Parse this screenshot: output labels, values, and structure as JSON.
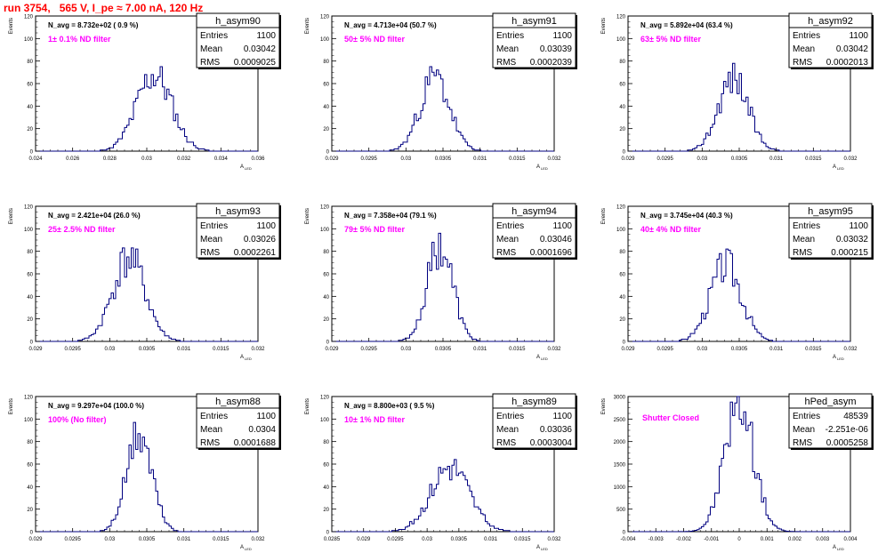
{
  "run_title": "run 3754,   565 V, I_pe ≈ 7.00 nA, 120 Hz",
  "stat_labels": {
    "entries": "Entries",
    "mean": "Mean",
    "rms": "RMS"
  },
  "chart_data": [
    {
      "type": "histogram",
      "name": "h_asym90",
      "entries": "1100",
      "mean": "0.03042",
      "rms": "0.0009025",
      "annotation": "N_avg = 8.732e+02 ( 0.9 %)",
      "filter_label": "1± 0.1% ND filter",
      "ylabel": "Events",
      "xlabel": "A",
      "xlim": [
        0.024,
        0.036
      ],
      "ylim": [
        0,
        120
      ],
      "x_ticks": [
        0.024,
        0.026,
        0.028,
        0.03,
        0.032,
        0.034,
        0.036
      ],
      "x_tick_labels": [
        "0.024",
        "0.026",
        "0.028",
        "0.03",
        "0.032",
        "0.034",
        "0.036"
      ],
      "y_ticks": [
        0,
        20,
        40,
        60,
        80,
        100,
        120
      ],
      "mu": 0.0304,
      "sigma": 0.00095,
      "peak": 68,
      "seed": 11
    },
    {
      "type": "histogram",
      "name": "h_asym91",
      "entries": "1100",
      "mean": "0.03039",
      "rms": "0.0002039",
      "annotation": "N_avg = 4.713e+04 (50.7 %)",
      "filter_label": "50± 5% ND filter",
      "ylabel": "Events",
      "xlabel": "A",
      "xlim": [
        0.029,
        0.032
      ],
      "ylim": [
        0,
        120
      ],
      "x_ticks": [
        0.029,
        0.0295,
        0.03,
        0.0305,
        0.031,
        0.0315,
        0.032
      ],
      "x_tick_labels": [
        "0.029",
        "0.0295",
        "0.03",
        "0.0305",
        "0.031",
        "0.0315",
        "0.032"
      ],
      "y_ticks": [
        0,
        20,
        40,
        60,
        80,
        100,
        120
      ],
      "mu": 0.03039,
      "sigma": 0.0002,
      "peak": 65,
      "seed": 23
    },
    {
      "type": "histogram",
      "name": "h_asym92",
      "entries": "1100",
      "mean": "0.03042",
      "rms": "0.0002013",
      "annotation": "N_avg = 5.892e+04 (63.4 %)",
      "filter_label": "63± 5% ND filter",
      "ylabel": "Events",
      "xlabel": "A",
      "xlim": [
        0.029,
        0.032
      ],
      "ylim": [
        0,
        120
      ],
      "x_ticks": [
        0.029,
        0.0295,
        0.03,
        0.0305,
        0.031,
        0.0315,
        0.032
      ],
      "x_tick_labels": [
        "0.029",
        "0.0295",
        "0.03",
        "0.0305",
        "0.031",
        "0.0315",
        "0.032"
      ],
      "y_ticks": [
        0,
        20,
        40,
        60,
        80,
        100,
        120
      ],
      "mu": 0.03042,
      "sigma": 0.0002,
      "peak": 66,
      "seed": 37
    },
    {
      "type": "histogram",
      "name": "h_asym93",
      "entries": "1100",
      "mean": "0.03026",
      "rms": "0.0002261",
      "annotation": "N_avg = 2.421e+04 (26.0 %)",
      "filter_label": "25± 2.5% ND filter",
      "ylabel": "Events",
      "xlabel": "A",
      "xlim": [
        0.029,
        0.032
      ],
      "ylim": [
        0,
        120
      ],
      "x_ticks": [
        0.029,
        0.0295,
        0.03,
        0.0305,
        0.031,
        0.0315,
        0.032
      ],
      "x_tick_labels": [
        "0.029",
        "0.0295",
        "0.03",
        "0.0305",
        "0.031",
        "0.0315",
        "0.032"
      ],
      "y_ticks": [
        0,
        20,
        40,
        60,
        80,
        100,
        120
      ],
      "mu": 0.03026,
      "sigma": 0.00022,
      "peak": 74,
      "seed": 41
    },
    {
      "type": "histogram",
      "name": "h_asym94",
      "entries": "1100",
      "mean": "0.03046",
      "rms": "0.0001696",
      "annotation": "N_avg = 7.358e+04 (79.1 %)",
      "filter_label": "79± 5% ND filter",
      "ylabel": "Events",
      "xlabel": "A",
      "xlim": [
        0.029,
        0.032
      ],
      "ylim": [
        0,
        120
      ],
      "x_ticks": [
        0.029,
        0.0295,
        0.03,
        0.0305,
        0.031,
        0.0315,
        0.032
      ],
      "x_tick_labels": [
        "0.029",
        "0.0295",
        "0.03",
        "0.0305",
        "0.031",
        "0.0315",
        "0.032"
      ],
      "y_ticks": [
        0,
        20,
        40,
        60,
        80,
        100,
        120
      ],
      "mu": 0.03046,
      "sigma": 0.00017,
      "peak": 86,
      "seed": 53
    },
    {
      "type": "histogram",
      "name": "h_asym95",
      "entries": "1100",
      "mean": "0.03032",
      "rms": "0.000215",
      "annotation": "N_avg = 3.745e+04 (40.3 %)",
      "filter_label": "40± 4% ND filter",
      "ylabel": "Events",
      "xlabel": "A",
      "xlim": [
        0.029,
        0.032
      ],
      "ylim": [
        0,
        120
      ],
      "x_ticks": [
        0.029,
        0.0295,
        0.03,
        0.0305,
        0.031,
        0.0315,
        0.032
      ],
      "x_tick_labels": [
        "0.029",
        "0.0295",
        "0.03",
        "0.0305",
        "0.031",
        "0.0315",
        "0.032"
      ],
      "y_ticks": [
        0,
        20,
        40,
        60,
        80,
        100,
        120
      ],
      "mu": 0.03032,
      "sigma": 0.00021,
      "peak": 68,
      "seed": 67
    },
    {
      "type": "histogram",
      "name": "h_asym88",
      "entries": "1100",
      "mean": "0.0304",
      "rms": "0.0001688",
      "annotation": "N_avg = 9.297e+04 (100.0 %)",
      "filter_label": "100% (No filter)",
      "ylabel": "Events",
      "xlabel": "A",
      "xlim": [
        0.029,
        0.032
      ],
      "ylim": [
        0,
        120
      ],
      "x_ticks": [
        0.029,
        0.0295,
        0.03,
        0.0305,
        0.031,
        0.0315,
        0.032
      ],
      "x_tick_labels": [
        "0.029",
        "0.0295",
        "0.03",
        "0.0305",
        "0.031",
        "0.0315",
        "0.032"
      ],
      "y_ticks": [
        0,
        20,
        40,
        60,
        80,
        100,
        120
      ],
      "mu": 0.0304,
      "sigma": 0.00017,
      "peak": 86,
      "seed": 71
    },
    {
      "type": "histogram",
      "name": "h_asym89",
      "entries": "1100",
      "mean": "0.03036",
      "rms": "0.0003004",
      "annotation": "N_avg = 8.800e+03 ( 9.5 %)",
      "filter_label": "10± 1% ND filter",
      "ylabel": "Events",
      "xlabel": "A",
      "xlim": [
        0.0285,
        0.032
      ],
      "ylim": [
        0,
        120
      ],
      "x_ticks": [
        0.0285,
        0.029,
        0.0295,
        0.03,
        0.0305,
        0.031,
        0.0315,
        0.032
      ],
      "x_tick_labels": [
        "0.0285",
        "0.029",
        "0.0295",
        "0.03",
        "0.0305",
        "0.031",
        "0.0315",
        "0.032"
      ],
      "y_ticks": [
        0,
        20,
        40,
        60,
        80,
        100,
        120
      ],
      "mu": 0.03036,
      "sigma": 0.0003,
      "peak": 58,
      "seed": 83
    },
    {
      "type": "histogram",
      "name": "hPed_asym",
      "entries": "48539",
      "mean": "-2.251e-06",
      "rms": "0.0005258",
      "annotation": "",
      "filter_label": "Shutter Closed",
      "ylabel": "Events",
      "xlabel": "A",
      "xlim": [
        -0.004,
        0.004
      ],
      "ylim": [
        0,
        3000
      ],
      "x_ticks": [
        -0.004,
        -0.003,
        -0.002,
        -0.001,
        0,
        0.001,
        0.002,
        0.003,
        0.004
      ],
      "x_tick_labels": [
        "-0.004",
        "-0.003",
        "-0.002",
        "-0.001",
        "0",
        "0.001",
        "0.002",
        "0.003",
        "0.004"
      ],
      "y_ticks": [
        0,
        500,
        1000,
        1500,
        2000,
        2500,
        3000
      ],
      "mu": 0.0,
      "sigma": 0.00052,
      "peak": 2900,
      "seed": 97
    }
  ]
}
